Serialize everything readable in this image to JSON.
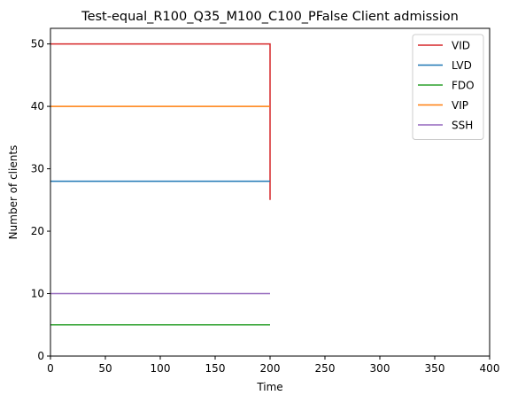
{
  "chart_data": {
    "type": "line",
    "title": "Test-equal_R100_Q35_M100_C100_PFalse Client admission",
    "xlabel": "Time",
    "ylabel": "Number of clients",
    "xlim": [
      0,
      400
    ],
    "ylim": [
      0,
      52.5
    ],
    "xticks": [
      0,
      50,
      100,
      150,
      200,
      250,
      300,
      350,
      400
    ],
    "yticks": [
      0,
      10,
      20,
      30,
      40,
      50
    ],
    "grid": false,
    "legend_position": "top-right",
    "series": [
      {
        "name": "VID",
        "color": "#d62728",
        "points": [
          [
            0,
            50
          ],
          [
            200,
            50
          ],
          [
            200,
            25
          ]
        ]
      },
      {
        "name": "LVD",
        "color": "#1f77b4",
        "points": [
          [
            0,
            28
          ],
          [
            200,
            28
          ]
        ]
      },
      {
        "name": "FDO",
        "color": "#2ca02c",
        "points": [
          [
            0,
            5
          ],
          [
            200,
            5
          ]
        ]
      },
      {
        "name": "VIP",
        "color": "#ff7f0e",
        "points": [
          [
            0,
            40
          ],
          [
            200,
            40
          ]
        ]
      },
      {
        "name": "SSH",
        "color": "#9467bd",
        "points": [
          [
            0,
            10
          ],
          [
            200,
            10
          ]
        ]
      }
    ]
  }
}
